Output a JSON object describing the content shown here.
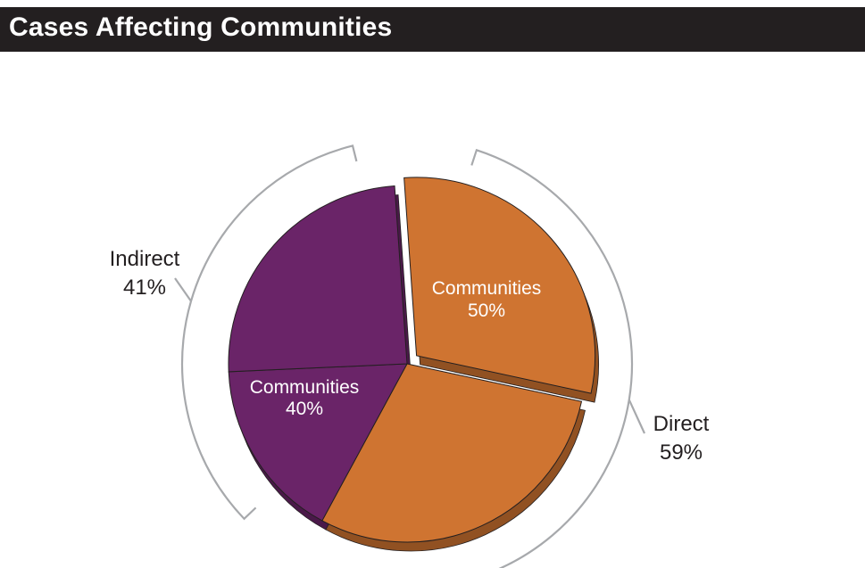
{
  "chart_data": {
    "type": "pie",
    "title": "Cases Affecting Communities",
    "groups": [
      {
        "name": "Indirect",
        "value": 41,
        "value_label": "41%",
        "color": "#6a2468"
      },
      {
        "name": "Direct",
        "value": 59,
        "value_label": "59%",
        "color": "#cf7431"
      }
    ],
    "slices": [
      {
        "group": "Direct",
        "label": "Communities",
        "value_label": "50%",
        "share_of_total": 29.5,
        "color": "#cf7431",
        "exploded": true
      },
      {
        "group": "Direct",
        "label": "",
        "value_label": "",
        "share_of_total": 29.5,
        "color": "#cf7431",
        "exploded": false
      },
      {
        "group": "Indirect",
        "label": "Communities",
        "value_label": "40%",
        "share_of_total": 16.4,
        "color": "#6a2468",
        "exploded": false
      },
      {
        "group": "Indirect",
        "label": "",
        "value_label": "",
        "share_of_total": 24.6,
        "color": "#6a2468",
        "exploded": false
      }
    ],
    "legend": false,
    "grid": false
  }
}
